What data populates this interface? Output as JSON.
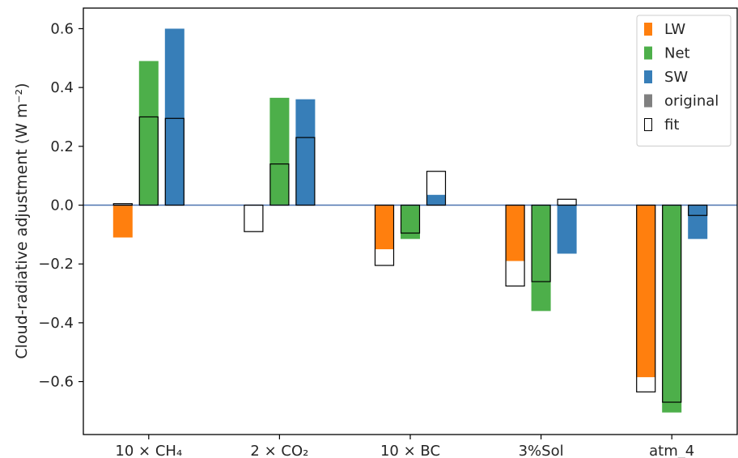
{
  "chart_data": {
    "type": "bar",
    "ylabel": "Cloud-radiative adjustment (W m⁻²)",
    "ylim": [
      -0.78,
      0.67
    ],
    "yticks": [
      -0.6,
      -0.4,
      -0.2,
      0.0,
      0.2,
      0.4,
      0.6
    ],
    "ytick_labels": [
      "−0.6",
      "−0.4",
      "−0.2",
      "0.0",
      "0.2",
      "0.4",
      "0.6"
    ],
    "categories": [
      "10 × CH₄",
      "2 × CO₂",
      "10 × BC",
      "3%Sol",
      "atm_4"
    ],
    "series": [
      {
        "name": "LW",
        "color": "#ff7f0e",
        "original": [
          -0.11,
          0.0,
          -0.15,
          -0.19,
          -0.585
        ],
        "fit": [
          0.005,
          -0.09,
          -0.205,
          -0.275,
          -0.635
        ]
      },
      {
        "name": "Net",
        "color": "#4daf4a",
        "original": [
          0.49,
          0.365,
          -0.115,
          -0.36,
          -0.705
        ],
        "fit": [
          0.3,
          0.14,
          -0.095,
          -0.26,
          -0.67
        ]
      },
      {
        "name": "SW",
        "color": "#377eb8",
        "original": [
          0.6,
          0.36,
          0.035,
          -0.165,
          -0.115
        ],
        "fit": [
          0.295,
          0.23,
          0.115,
          0.02,
          -0.035
        ]
      }
    ],
    "legend": {
      "position": "top-right",
      "entries": [
        {
          "label": "LW",
          "kind": "swatch",
          "color": "#ff7f0e"
        },
        {
          "label": "Net",
          "kind": "swatch",
          "color": "#4daf4a"
        },
        {
          "label": "SW",
          "kind": "swatch",
          "color": "#377eb8"
        },
        {
          "label": "original",
          "kind": "swatch",
          "color": "#808080"
        },
        {
          "label": "fit",
          "kind": "outline",
          "color": "#000000"
        }
      ]
    },
    "zero_line_color": "#4c72b0",
    "grid": false
  }
}
